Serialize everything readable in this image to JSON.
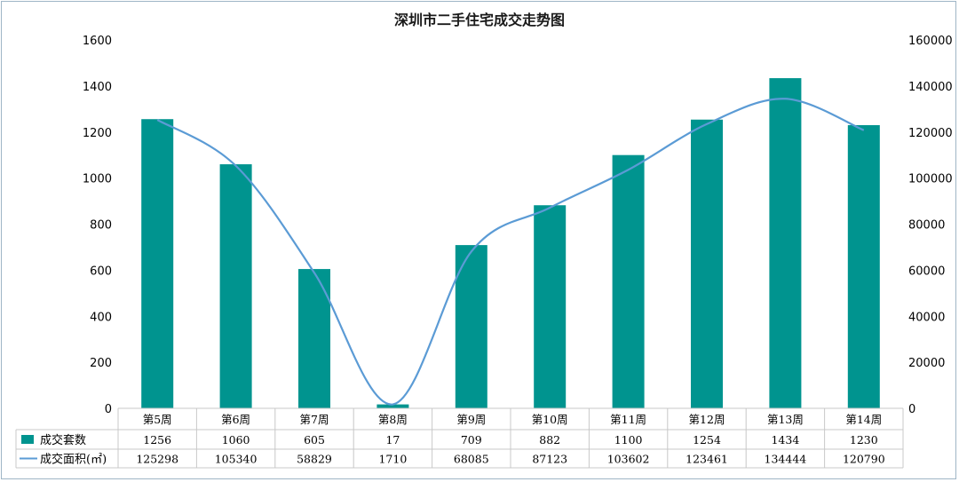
{
  "chart_data": {
    "type": "bar",
    "title": "深圳市二手住宅成交走势图",
    "categories": [
      "第5周",
      "第6周",
      "第7周",
      "第8周",
      "第9周",
      "第10周",
      "第11周",
      "第12周",
      "第13周",
      "第14周"
    ],
    "series": [
      {
        "name": "成交套数",
        "type": "bar",
        "axis": "left",
        "color": "#00948f",
        "values": [
          1256,
          1060,
          605,
          17,
          709,
          882,
          1100,
          1254,
          1434,
          1230
        ],
        "labels": [
          "1256",
          "1060",
          "605",
          "17",
          "709",
          "882",
          "1100",
          "1254",
          "1434",
          "1230"
        ]
      },
      {
        "name": "成交面积(㎡)",
        "type": "line",
        "axis": "right",
        "color": "#5b9bd5",
        "values": [
          125298,
          105340,
          58829,
          1710,
          68085,
          87123,
          103602,
          123461,
          134444,
          120790
        ],
        "labels": [
          "125298",
          "105340",
          "58829",
          "1710",
          "68085",
          "87123",
          "103602",
          "123461",
          "134444",
          "120790"
        ]
      }
    ],
    "ylim_left": [
      0,
      1600
    ],
    "yticks_left": [
      "0",
      "200",
      "400",
      "600",
      "800",
      "1000",
      "1200",
      "1400",
      "1600"
    ],
    "ylim_right": [
      0,
      160000
    ],
    "yticks_right": [
      "0",
      "20000",
      "40000",
      "60000",
      "80000",
      "100000",
      "120000",
      "140000",
      "160000"
    ],
    "grid": false,
    "legend": "data-table-bottom"
  }
}
